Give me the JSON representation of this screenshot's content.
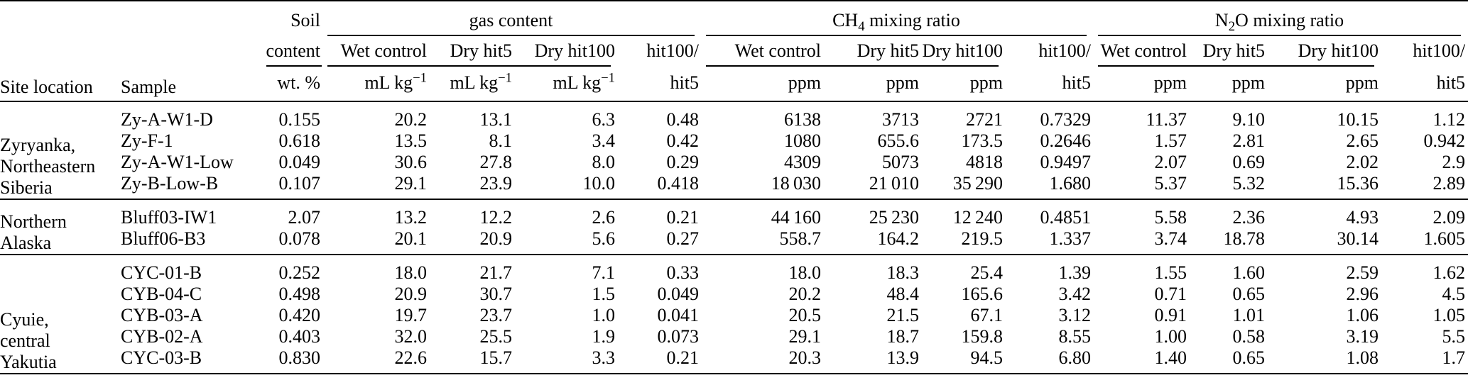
{
  "table": {
    "col_headers": {
      "site": "Site location",
      "sample": "Sample",
      "soil_lines": [
        "Soil",
        "content",
        "wt. %"
      ],
      "groups": [
        {
          "pre": "gas content",
          "sub": "",
          "post": ""
        },
        {
          "pre": "CH",
          "sub": "4",
          "post": " mixing ratio"
        },
        {
          "pre": "N",
          "sub": "2",
          "post": "O mixing ratio"
        }
      ],
      "sub_headers": [
        "Wet control",
        "Dry hit5",
        "Dry hit100",
        "hit100/"
      ],
      "units": {
        "gas_base": "mL kg",
        "gas_sup": "−1",
        "ppm": "ppm",
        "ratio_denom": "hit5"
      }
    },
    "sections": [
      {
        "site_lines": [
          "Zyryanka,",
          "Northeastern",
          "Siberia"
        ],
        "rows": [
          {
            "sample": "Zy-A-W1-D",
            "soil": "0.155",
            "gas": [
              "20.2",
              "13.1",
              "6.3",
              "0.48"
            ],
            "ch4": [
              "6138",
              "3713",
              "2721",
              "0.7329"
            ],
            "n2o": [
              "11.37",
              "9.10",
              "10.15",
              "1.12"
            ]
          },
          {
            "sample": "Zy-F-1",
            "soil": "0.618",
            "gas": [
              "13.5",
              "8.1",
              "3.4",
              "0.42"
            ],
            "ch4": [
              "1080",
              "655.6",
              "173.5",
              "0.2646"
            ],
            "n2o": [
              "1.57",
              "2.81",
              "2.65",
              "0.942"
            ]
          },
          {
            "sample": "Zy-A-W1-Low",
            "soil": "0.049",
            "gas": [
              "30.6",
              "27.8",
              "8.0",
              "0.29"
            ],
            "ch4": [
              "4309",
              "5073",
              "4818",
              "0.9497"
            ],
            "n2o": [
              "2.07",
              "0.69",
              "2.02",
              "2.9"
            ]
          },
          {
            "sample": "Zy-B-Low-B",
            "soil": "0.107",
            "gas": [
              "29.1",
              "23.9",
              "10.0",
              "0.418"
            ],
            "ch4": [
              "18 030",
              "21 010",
              "35 290",
              "1.680"
            ],
            "n2o": [
              "5.37",
              "5.32",
              "15.36",
              "2.89"
            ]
          }
        ]
      },
      {
        "site_lines": [
          "Northern",
          "Alaska"
        ],
        "rows": [
          {
            "sample": "Bluff03-IW1",
            "soil": "2.07",
            "gas": [
              "13.2",
              "12.2",
              "2.6",
              "0.21"
            ],
            "ch4": [
              "44 160",
              "25 230",
              "12 240",
              "0.4851"
            ],
            "n2o": [
              "5.58",
              "2.36",
              "4.93",
              "2.09"
            ]
          },
          {
            "sample": "Bluff06-B3",
            "soil": "0.078",
            "gas": [
              "20.1",
              "20.9",
              "5.6",
              "0.27"
            ],
            "ch4": [
              "558.7",
              "164.2",
              "219.5",
              "1.337"
            ],
            "n2o": [
              "3.74",
              "18.78",
              "30.14",
              "1.605"
            ]
          }
        ]
      },
      {
        "site_lines": [
          "Cyuie,",
          "central",
          "Yakutia"
        ],
        "rows": [
          {
            "sample": "CYC-01-B",
            "soil": "0.252",
            "gas": [
              "18.0",
              "21.7",
              "7.1",
              "0.33"
            ],
            "ch4": [
              "18.0",
              "18.3",
              "25.4",
              "1.39"
            ],
            "n2o": [
              "1.55",
              "1.60",
              "2.59",
              "1.62"
            ]
          },
          {
            "sample": "CYB-04-C",
            "soil": "0.498",
            "gas": [
              "20.9",
              "30.7",
              "1.5",
              "0.049"
            ],
            "ch4": [
              "20.2",
              "48.4",
              "165.6",
              "3.42"
            ],
            "n2o": [
              "0.71",
              "0.65",
              "2.96",
              "4.5"
            ]
          },
          {
            "sample": "CYB-03-A",
            "soil": "0.420",
            "gas": [
              "19.7",
              "23.7",
              "1.0",
              "0.041"
            ],
            "ch4": [
              "20.5",
              "21.5",
              "67.1",
              "3.12"
            ],
            "n2o": [
              "0.91",
              "1.01",
              "1.06",
              "1.05"
            ]
          },
          {
            "sample": "CYB-02-A",
            "soil": "0.403",
            "gas": [
              "32.0",
              "25.5",
              "1.9",
              "0.073"
            ],
            "ch4": [
              "29.1",
              "18.7",
              "159.8",
              "8.55"
            ],
            "n2o": [
              "1.00",
              "0.58",
              "3.19",
              "5.5"
            ]
          },
          {
            "sample": "CYC-03-B",
            "soil": "0.830",
            "gas": [
              "22.6",
              "15.7",
              "3.3",
              "0.21"
            ],
            "ch4": [
              "20.3",
              "13.9",
              "94.5",
              "6.80"
            ],
            "n2o": [
              "1.40",
              "0.65",
              "1.08",
              "1.7"
            ]
          }
        ]
      }
    ]
  }
}
